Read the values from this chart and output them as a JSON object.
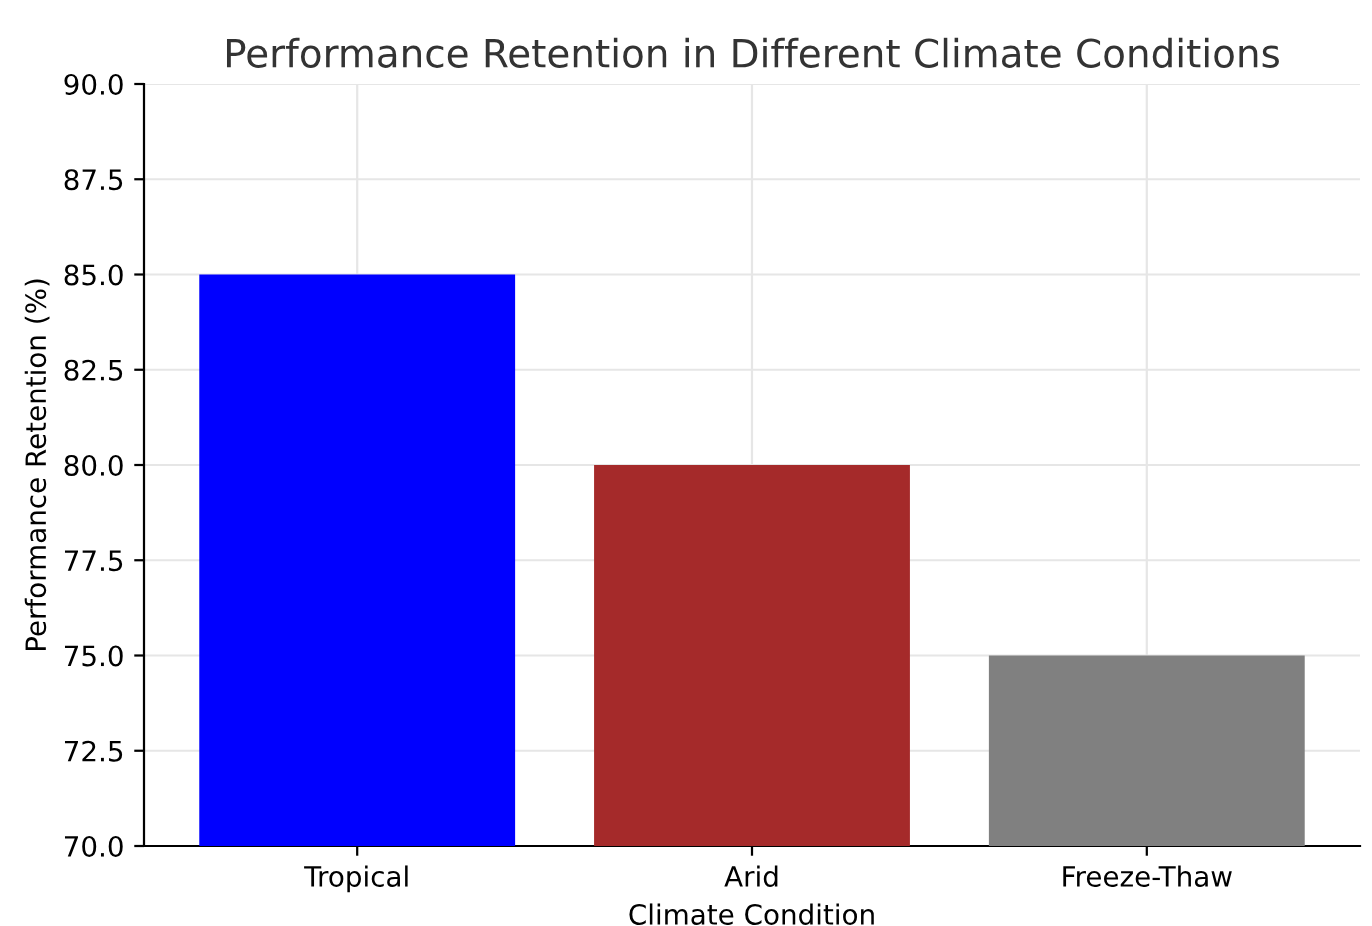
{
  "chart_data": {
    "type": "bar",
    "title": "Performance Retention in Different Climate Conditions",
    "xlabel": "Climate Condition",
    "ylabel": "Performance Retention (%)",
    "categories": [
      "Tropical",
      "Arid",
      "Freeze-Thaw"
    ],
    "values": [
      85,
      80,
      75
    ],
    "colors": [
      "#0000ff",
      "#a52a2a",
      "#808080"
    ],
    "ylim": [
      70,
      90
    ],
    "yticks": [
      {
        "value": 70,
        "label": "70.0"
      },
      {
        "value": 72.5,
        "label": "72.5"
      },
      {
        "value": 75,
        "label": "75.0"
      },
      {
        "value": 77.5,
        "label": "77.5"
      },
      {
        "value": 80,
        "label": "80.0"
      },
      {
        "value": 82.5,
        "label": "82.5"
      },
      {
        "value": 85,
        "label": "85.0"
      },
      {
        "value": 87.5,
        "label": "87.5"
      },
      {
        "value": 90,
        "label": "90.0"
      }
    ],
    "grid": true
  }
}
